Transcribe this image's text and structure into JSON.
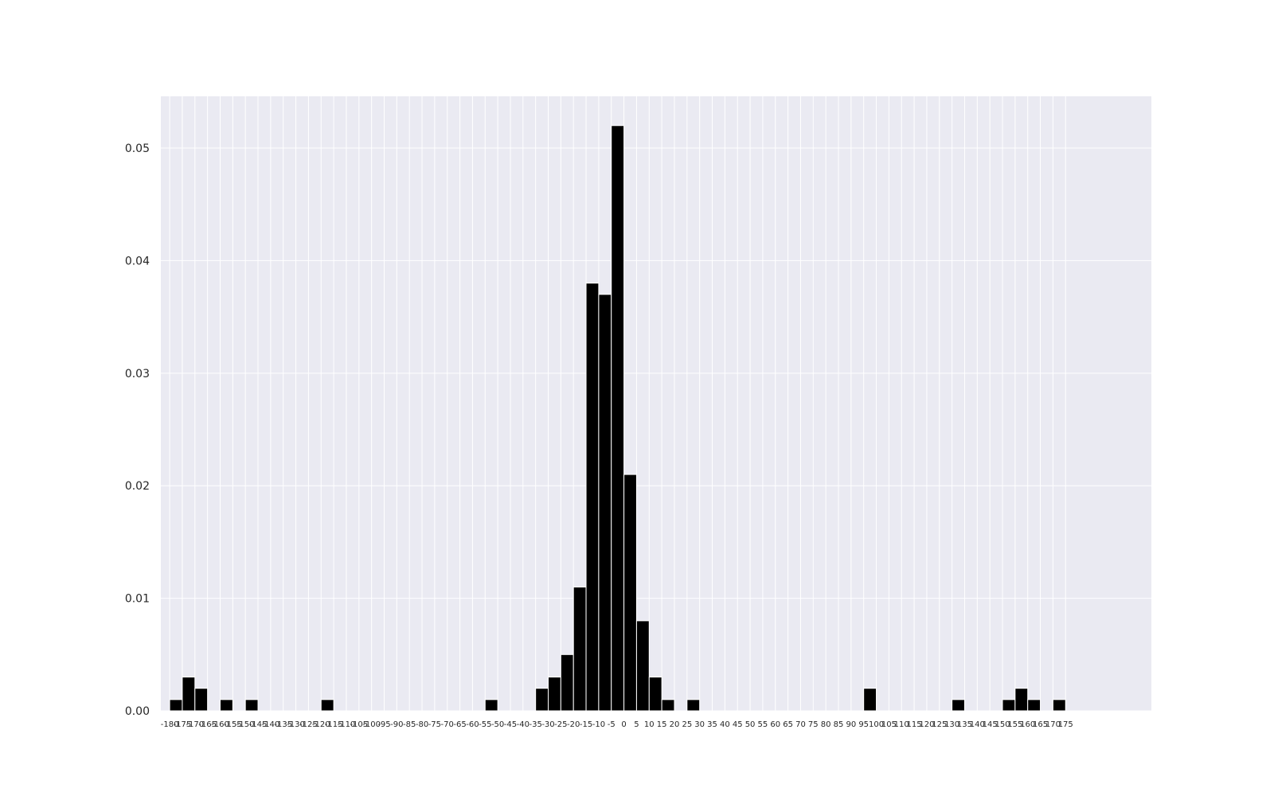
{
  "chart_data": {
    "type": "bar",
    "title": "",
    "xlabel": "",
    "ylabel": "",
    "x": [
      -180,
      -175,
      -170,
      -165,
      -160,
      -155,
      -150,
      -145,
      -140,
      -135,
      -130,
      -125,
      -120,
      -115,
      -110,
      -105,
      -100,
      -95,
      -90,
      -85,
      -80,
      -75,
      -70,
      -65,
      -60,
      -55,
      -50,
      -45,
      -40,
      -35,
      -30,
      -25,
      -20,
      -15,
      -10,
      -5,
      0,
      5,
      10,
      15,
      20,
      25,
      30,
      35,
      40,
      45,
      50,
      55,
      60,
      65,
      70,
      75,
      80,
      85,
      90,
      95,
      100,
      105,
      110,
      115,
      120,
      125,
      130,
      135,
      140,
      145,
      150,
      155,
      160,
      165,
      170,
      175
    ],
    "x_tick_labels": [
      "-180",
      "-175",
      "-170",
      "-165",
      "-160",
      "-155",
      "-150",
      "-145",
      "-140",
      "-135",
      "-130",
      "-125",
      "-120",
      "-115",
      "-110",
      "-105",
      "-100",
      "-95",
      "-90",
      "-85",
      "-80",
      "-75",
      "-70",
      "-65",
      "-60",
      "-55",
      "-50",
      "-45",
      "-40",
      "-35",
      "-30",
      "-25",
      "-20",
      "-15",
      "-10",
      "-5",
      "0",
      "5",
      "10",
      "15",
      "20",
      "25",
      "30",
      "35",
      "40",
      "45",
      "50",
      "55",
      "60",
      "65",
      "70",
      "75",
      "80",
      "85",
      "90",
      "95",
      "100",
      "105",
      "110",
      "115",
      "120",
      "125",
      "130",
      "135",
      "140",
      "145",
      "150",
      "155",
      "160",
      "165",
      "170",
      "175"
    ],
    "values": [
      0.001,
      0.003,
      0.002,
      0,
      0.001,
      0,
      0.001,
      0,
      0,
      0,
      0,
      0,
      0.001,
      0,
      0,
      0,
      0,
      0,
      0,
      0,
      0,
      0,
      0,
      0,
      0,
      0.001,
      0,
      0,
      0,
      0.002,
      0.003,
      0.005,
      0.011,
      0.038,
      0.037,
      0.052,
      0.021,
      0.008,
      0.003,
      0.001,
      0,
      0.001,
      0,
      0,
      0,
      0,
      0,
      0,
      0,
      0,
      0,
      0,
      0,
      0,
      0,
      0.002,
      0,
      0,
      0,
      0,
      0,
      0,
      0.001,
      0,
      0,
      0,
      0.001,
      0.002,
      0.001,
      0,
      0.001,
      0
    ],
    "y_ticks": [
      0.0,
      0.01,
      0.02,
      0.03,
      0.04,
      0.05
    ],
    "y_tick_labels": [
      "0.00",
      "0.01",
      "0.02",
      "0.03",
      "0.04",
      "0.05"
    ],
    "ylim": [
      0,
      0.0546
    ],
    "xlim": [
      -183.5,
      209
    ],
    "grid": true,
    "colors": {
      "background": "#eaeaf2",
      "bar": "#000000",
      "grid": "#ffffff",
      "text": "#262626"
    }
  }
}
